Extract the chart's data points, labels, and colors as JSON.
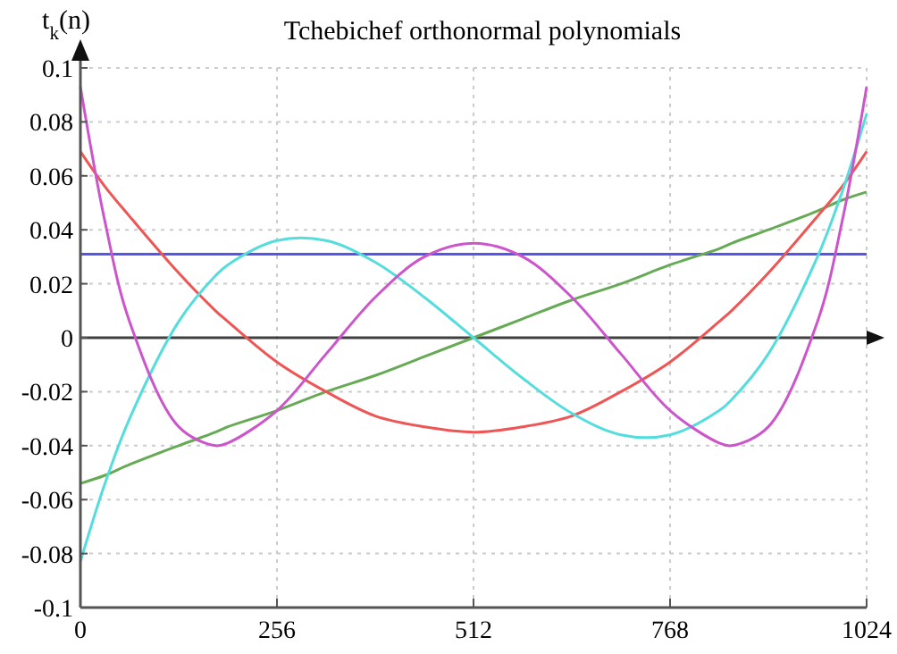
{
  "chart_data": {
    "type": "line",
    "title": "Tchebichef orthonormal polynomials",
    "ylabel": "t$_{k}$(n)",
    "xlim": [
      0,
      1024
    ],
    "xticks": [
      0,
      256,
      512,
      768,
      1024
    ],
    "ylim": [
      -0.1,
      0.1
    ],
    "yticks": [
      -0.1,
      -0.08,
      -0.06,
      -0.04,
      -0.02,
      0,
      0.02,
      0.04,
      0.06,
      0.08,
      0.1
    ],
    "grid": true,
    "marker": "none",
    "line_style": "solid",
    "ref_lines": [
      {
        "axis": "y",
        "value": 0,
        "color": "#404040"
      }
    ],
    "x": [
      0,
      32,
      64,
      128,
      176,
      192,
      256,
      320,
      384,
      448,
      512,
      576,
      640,
      704,
      768,
      832,
      848,
      896,
      960,
      992,
      1024
    ],
    "series": [
      {
        "color": "#5555ee",
        "values": [
          0.031,
          0.031,
          0.031,
          0.031,
          0.031,
          0.031,
          0.031,
          0.031,
          0.031,
          0.031,
          0.031,
          0.031,
          0.031,
          0.031,
          0.031,
          0.031,
          0.031,
          0.031,
          0.031,
          0.031,
          0.031
        ]
      },
      {
        "color": "#66aa55",
        "values": [
          -0.054,
          -0.051,
          -0.047,
          -0.04,
          -0.035,
          -0.033,
          -0.027,
          -0.02,
          -0.014,
          -0.007,
          0,
          0.007,
          0.014,
          0.02,
          0.027,
          0.033,
          0.035,
          0.04,
          0.047,
          0.051,
          0.054
        ]
      },
      {
        "color": "#ee5555",
        "values": [
          0.069,
          0.056,
          0.045,
          0.024,
          0.01,
          0.006,
          -0.009,
          -0.02,
          -0.029,
          -0.033,
          -0.035,
          -0.033,
          -0.029,
          -0.02,
          -0.009,
          0.006,
          0.01,
          0.024,
          0.045,
          0.056,
          0.069
        ]
      },
      {
        "color": "#55dddd",
        "values": [
          -0.083,
          -0.054,
          -0.03,
          0.006,
          0.023,
          0.027,
          0.036,
          0.036,
          0.028,
          0.015,
          0,
          -0.015,
          -0.028,
          -0.036,
          -0.036,
          -0.027,
          -0.023,
          -0.006,
          0.03,
          0.054,
          0.083
        ]
      },
      {
        "color": "#cc55cc",
        "values": [
          0.093,
          0.043,
          0.006,
          -0.033,
          -0.04,
          -0.039,
          -0.027,
          -0.006,
          0.015,
          0.03,
          0.035,
          0.03,
          0.015,
          -0.006,
          -0.027,
          -0.039,
          -0.04,
          -0.033,
          0.006,
          0.043,
          0.093
        ]
      }
    ]
  }
}
